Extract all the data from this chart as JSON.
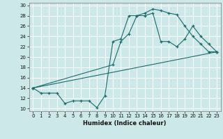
{
  "title": "",
  "xlabel": "Humidex (Indice chaleur)",
  "ylabel": "",
  "bg_color": "#cce8e8",
  "grid_color": "#ffffff",
  "line_color": "#1a6b6b",
  "marker": "+",
  "xlim": [
    -0.5,
    23.5
  ],
  "ylim": [
    9.5,
    30.5
  ],
  "xticks": [
    0,
    1,
    2,
    3,
    4,
    5,
    6,
    7,
    8,
    9,
    10,
    11,
    12,
    13,
    14,
    15,
    16,
    17,
    18,
    19,
    20,
    21,
    22,
    23
  ],
  "yticks": [
    10,
    12,
    14,
    16,
    18,
    20,
    22,
    24,
    26,
    28,
    30
  ],
  "series1_x": [
    0,
    1,
    2,
    3,
    4,
    5,
    6,
    7,
    8,
    9,
    10,
    11,
    12,
    13,
    14,
    15,
    16,
    17,
    18,
    19,
    20,
    21,
    22,
    23
  ],
  "series1_y": [
    14,
    13,
    13,
    13,
    11,
    11.5,
    11.5,
    11.5,
    10.2,
    12.5,
    23,
    23.5,
    28,
    28,
    28.5,
    29.3,
    29,
    28.5,
    28.2,
    26,
    24,
    22.5,
    21,
    21
  ],
  "series2_x": [
    0,
    10,
    11,
    12,
    13,
    14,
    15,
    16,
    17,
    18,
    19,
    20,
    21,
    22,
    23
  ],
  "series2_y": [
    14,
    18.5,
    23,
    24.5,
    28,
    28,
    28.5,
    23,
    23,
    22,
    23.5,
    26,
    24,
    22.5,
    21
  ],
  "series3_x": [
    0,
    23
  ],
  "series3_y": [
    14,
    21
  ],
  "tick_fontsize": 5.0,
  "xlabel_fontsize": 6.0
}
